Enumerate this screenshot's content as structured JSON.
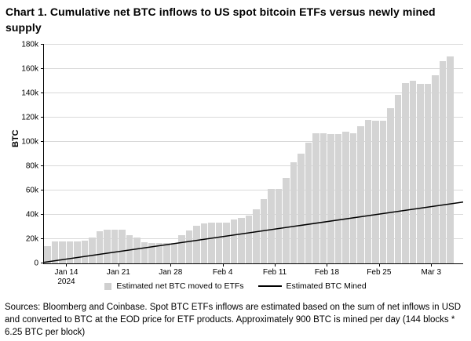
{
  "title": "Chart 1. Cumulative net BTC inflows to US spot bitcoin ETFs versus newly mined supply",
  "footnote": "Sources: Bloomberg and Coinbase. Spot BTC ETFs inflows are estimated based on the sum of net inflows in USD and converted to BTC at the EOD price for ETF products. Approximately 900 BTC is mined per day (144 blocks * 6.25 BTC per block)",
  "y_axis": {
    "label": "BTC",
    "tick_labels": [
      "0",
      "20k",
      "40k",
      "60k",
      "80k",
      "100k",
      "120k",
      "140k",
      "160k",
      "180k"
    ]
  },
  "legend": {
    "items": [
      {
        "swatch": "square",
        "color": "#cfcfcf",
        "label": "Estimated net BTC moved to ETFs"
      },
      {
        "swatch": "line",
        "color": "#000000",
        "label": "Estimated BTC Mined"
      }
    ]
  },
  "colors": {
    "bar": "#d4d4d4",
    "line": "#000000",
    "grid": "#d9d9d9",
    "axis": "#000000",
    "background": "#ffffff"
  },
  "chart_data": {
    "type": "bar",
    "title": "Chart 1. Cumulative net BTC inflows to US spot bitcoin ETFs versus newly mined supply",
    "xlabel": "",
    "ylabel": "BTC",
    "ylim": [
      0,
      180000
    ],
    "ytick_step": 20000,
    "grid": "horizontal",
    "legend_position": "bottom-center",
    "x": [
      "Jan 11",
      "Jan 12",
      "Jan 13",
      "Jan 14",
      "Jan 15",
      "Jan 16",
      "Jan 17",
      "Jan 18",
      "Jan 19",
      "Jan 20",
      "Jan 21",
      "Jan 22",
      "Jan 23",
      "Jan 24",
      "Jan 25",
      "Jan 26",
      "Jan 27",
      "Jan 28",
      "Jan 29",
      "Jan 30",
      "Jan 31",
      "Feb 1",
      "Feb 2",
      "Feb 3",
      "Feb 4",
      "Feb 5",
      "Feb 6",
      "Feb 7",
      "Feb 8",
      "Feb 9",
      "Feb 10",
      "Feb 11",
      "Feb 12",
      "Feb 13",
      "Feb 14",
      "Feb 15",
      "Feb 16",
      "Feb 17",
      "Feb 18",
      "Feb 19",
      "Feb 20",
      "Feb 21",
      "Feb 22",
      "Feb 23",
      "Feb 24",
      "Feb 25",
      "Feb 26",
      "Feb 27",
      "Feb 28",
      "Feb 29",
      "Mar 1",
      "Mar 2",
      "Mar 3",
      "Mar 4",
      "Mar 5"
    ],
    "series": [
      {
        "name": "Estimated net BTC moved to ETFs",
        "type": "bar",
        "color": "#d4d4d4",
        "values": [
          14000,
          17800,
          17800,
          17800,
          17800,
          19000,
          21500,
          26500,
          27500,
          27500,
          27500,
          23200,
          21500,
          17200,
          16600,
          16600,
          16600,
          17000,
          23000,
          27000,
          31000,
          33000,
          33800,
          33800,
          33800,
          36000,
          37500,
          39500,
          44500,
          53000,
          61500,
          61500,
          70500,
          83500,
          90500,
          99500,
          107000,
          107000,
          106500,
          106500,
          108500,
          107000,
          113000,
          118000,
          117500,
          117500,
          128000,
          138500,
          148500,
          150500,
          147500,
          147500,
          155000,
          166500,
          170500
        ]
      },
      {
        "name": "Estimated BTC Mined",
        "type": "line",
        "color": "#000000",
        "start_value": 900,
        "end_value": 50500,
        "btc_mined_per_day": 900
      }
    ],
    "xticks": [
      {
        "label": "Jan 14",
        "sublabel": "2024",
        "index": 3
      },
      {
        "label": "Jan 21",
        "index": 10
      },
      {
        "label": "Jan 28",
        "index": 17
      },
      {
        "label": "Feb 4",
        "index": 24
      },
      {
        "label": "Feb 11",
        "index": 31
      },
      {
        "label": "Feb 18",
        "index": 38
      },
      {
        "label": "Feb 25",
        "index": 45
      },
      {
        "label": "Mar 3",
        "index": 52
      }
    ]
  }
}
